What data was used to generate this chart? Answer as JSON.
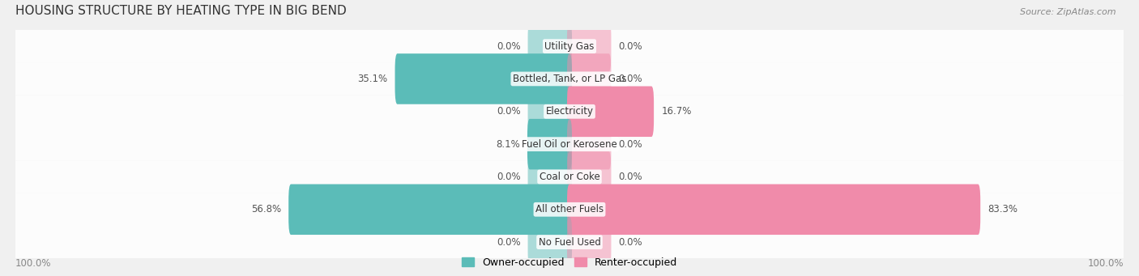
{
  "title": "HOUSING STRUCTURE BY HEATING TYPE IN BIG BEND",
  "source": "Source: ZipAtlas.com",
  "categories": [
    "Utility Gas",
    "Bottled, Tank, or LP Gas",
    "Electricity",
    "Fuel Oil or Kerosene",
    "Coal or Coke",
    "All other Fuels",
    "No Fuel Used"
  ],
  "owner_values": [
    0.0,
    35.1,
    0.0,
    8.1,
    0.0,
    56.8,
    0.0
  ],
  "renter_values": [
    0.0,
    0.0,
    16.7,
    0.0,
    0.0,
    83.3,
    0.0
  ],
  "owner_color": "#5bbcb8",
  "renter_color": "#f08baa",
  "owner_label": "Owner-occupied",
  "renter_label": "Renter-occupied",
  "bg_color": "#f0f0f0",
  "bar_bg_color": "#e8e8e8",
  "axis_label_left": "100.0%",
  "axis_label_right": "100.0%",
  "max_value": 100.0,
  "title_fontsize": 11,
  "label_fontsize": 8.5,
  "category_fontsize": 8.5,
  "legend_fontsize": 9,
  "source_fontsize": 8
}
